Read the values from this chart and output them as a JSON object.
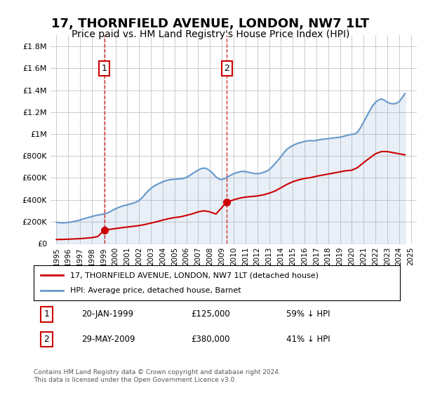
{
  "title": "17, THORNFIELD AVENUE, LONDON, NW7 1LT",
  "subtitle": "Price paid vs. HM Land Registry's House Price Index (HPI)",
  "title_fontsize": 13,
  "subtitle_fontsize": 10,
  "background_color": "#ffffff",
  "grid_color": "#cccccc",
  "ylim": [
    0,
    1900000
  ],
  "xlim": [
    1994.5,
    2025.5
  ],
  "yticks": [
    0,
    200000,
    400000,
    600000,
    800000,
    1000000,
    1200000,
    1400000,
    1600000,
    1800000
  ],
  "ytick_labels": [
    "£0",
    "£200K",
    "£400K",
    "£600K",
    "£800K",
    "£1M",
    "£1.2M",
    "£1.4M",
    "£1.6M",
    "£1.8M"
  ],
  "red_line_color": "#cc0000",
  "blue_line_color": "#6699cc",
  "transaction1": {
    "year": 1999.05,
    "price": 125000,
    "label": "1",
    "date": "20-JAN-1999",
    "amount": "£125,000",
    "pct": "59% ↓ HPI"
  },
  "transaction2": {
    "year": 2009.42,
    "price": 380000,
    "label": "2",
    "date": "29-MAY-2009",
    "amount": "£380,000",
    "pct": "41% ↓ HPI"
  },
  "legend_red": "17, THORNFIELD AVENUE, LONDON, NW7 1LT (detached house)",
  "legend_blue": "HPI: Average price, detached house, Barnet",
  "footer": "Contains HM Land Registry data © Crown copyright and database right 2024.\nThis data is licensed under the Open Government Licence v3.0.",
  "hpi_data": {
    "years": [
      1995,
      1995.25,
      1995.5,
      1995.75,
      1996,
      1996.25,
      1996.5,
      1996.75,
      1997,
      1997.25,
      1997.5,
      1997.75,
      1998,
      1998.25,
      1998.5,
      1998.75,
      1999,
      1999.25,
      1999.5,
      1999.75,
      2000,
      2000.25,
      2000.5,
      2000.75,
      2001,
      2001.25,
      2001.5,
      2001.75,
      2002,
      2002.25,
      2002.5,
      2002.75,
      2003,
      2003.25,
      2003.5,
      2003.75,
      2004,
      2004.25,
      2004.5,
      2004.75,
      2005,
      2005.25,
      2005.5,
      2005.75,
      2006,
      2006.25,
      2006.5,
      2006.75,
      2007,
      2007.25,
      2007.5,
      2007.75,
      2008,
      2008.25,
      2008.5,
      2008.75,
      2009,
      2009.25,
      2009.5,
      2009.75,
      2010,
      2010.25,
      2010.5,
      2010.75,
      2011,
      2011.25,
      2011.5,
      2011.75,
      2012,
      2012.25,
      2012.5,
      2012.75,
      2013,
      2013.25,
      2013.5,
      2013.75,
      2014,
      2014.25,
      2014.5,
      2014.75,
      2015,
      2015.25,
      2015.5,
      2015.75,
      2016,
      2016.25,
      2016.5,
      2016.75,
      2017,
      2017.25,
      2017.5,
      2017.75,
      2018,
      2018.25,
      2018.5,
      2018.75,
      2019,
      2019.25,
      2019.5,
      2019.75,
      2020,
      2020.25,
      2020.5,
      2020.75,
      2021,
      2021.25,
      2021.5,
      2021.75,
      2022,
      2022.25,
      2022.5,
      2022.75,
      2023,
      2023.25,
      2023.5,
      2023.75,
      2024,
      2024.25,
      2024.5
    ],
    "values": [
      195000,
      192000,
      190000,
      191000,
      194000,
      198000,
      203000,
      208000,
      216000,
      225000,
      233000,
      240000,
      248000,
      255000,
      261000,
      265000,
      270000,
      278000,
      290000,
      305000,
      318000,
      330000,
      340000,
      348000,
      355000,
      362000,
      370000,
      380000,
      395000,
      420000,
      450000,
      480000,
      505000,
      525000,
      540000,
      552000,
      565000,
      575000,
      582000,
      585000,
      588000,
      590000,
      592000,
      595000,
      605000,
      620000,
      638000,
      655000,
      672000,
      685000,
      690000,
      682000,
      665000,
      640000,
      610000,
      590000,
      585000,
      595000,
      610000,
      625000,
      638000,
      648000,
      655000,
      660000,
      658000,
      652000,
      645000,
      640000,
      638000,
      642000,
      650000,
      660000,
      675000,
      700000,
      730000,
      760000,
      795000,
      830000,
      860000,
      880000,
      895000,
      908000,
      918000,
      925000,
      932000,
      938000,
      940000,
      938000,
      942000,
      948000,
      952000,
      955000,
      958000,
      962000,
      965000,
      968000,
      972000,
      978000,
      985000,
      992000,
      998000,
      1000000,
      1020000,
      1060000,
      1110000,
      1160000,
      1210000,
      1255000,
      1290000,
      1310000,
      1320000,
      1310000,
      1290000,
      1280000,
      1275000,
      1280000,
      1295000,
      1330000,
      1370000
    ]
  },
  "red_data": {
    "years": [
      1995,
      1995.5,
      1996,
      1996.5,
      1997,
      1997.5,
      1998,
      1998.5,
      1999.05,
      1999.5,
      2000,
      2000.5,
      2001,
      2001.5,
      2002,
      2002.5,
      2003,
      2003.5,
      2004,
      2004.5,
      2005,
      2005.5,
      2006,
      2006.5,
      2007,
      2007.5,
      2008,
      2008.5,
      2009.42,
      2009.75,
      2010,
      2010.5,
      2011,
      2011.5,
      2012,
      2012.5,
      2013,
      2013.5,
      2014,
      2014.5,
      2015,
      2015.5,
      2016,
      2016.5,
      2017,
      2017.5,
      2018,
      2018.5,
      2019,
      2019.5,
      2020,
      2020.5,
      2021,
      2021.5,
      2022,
      2022.5,
      2023,
      2023.5,
      2024,
      2024.5
    ],
    "values": [
      38000,
      39000,
      41000,
      43000,
      46000,
      50000,
      55000,
      65000,
      125000,
      130000,
      138000,
      145000,
      152000,
      158000,
      165000,
      175000,
      188000,
      200000,
      215000,
      228000,
      238000,
      245000,
      258000,
      272000,
      290000,
      300000,
      290000,
      270000,
      380000,
      390000,
      400000,
      415000,
      425000,
      430000,
      435000,
      445000,
      460000,
      480000,
      510000,
      540000,
      565000,
      582000,
      595000,
      602000,
      615000,
      625000,
      635000,
      645000,
      655000,
      665000,
      670000,
      695000,
      740000,
      780000,
      820000,
      840000,
      840000,
      830000,
      820000,
      810000
    ]
  }
}
